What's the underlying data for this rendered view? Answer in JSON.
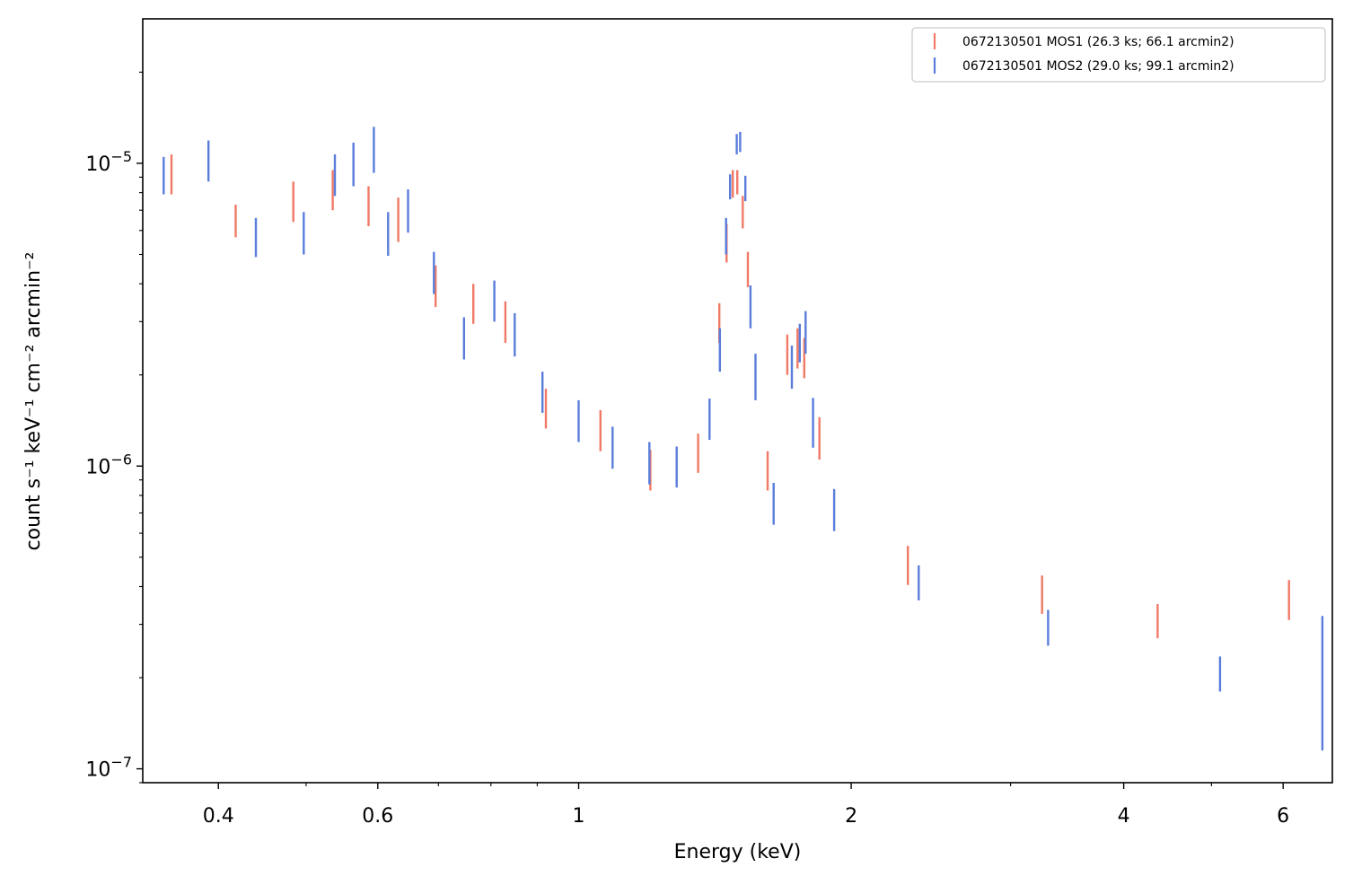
{
  "chart_data": {
    "type": "scatter",
    "xlabel": "Energy (keV)",
    "ylabel": "count s⁻¹ keV⁻¹ cm⁻² arcmin⁻²",
    "xscale": "log",
    "yscale": "log",
    "xlim": [
      0.33,
      6.8
    ],
    "ylim": [
      9e-08,
      3e-05
    ],
    "x_ticks": [
      {
        "value": 0.4,
        "label": "0.4"
      },
      {
        "value": 0.6,
        "label": "0.6"
      },
      {
        "value": 1,
        "label": "1"
      },
      {
        "value": 2,
        "label": "2"
      },
      {
        "value": 4,
        "label": "4"
      },
      {
        "value": 6,
        "label": "6"
      }
    ],
    "y_ticks": [
      {
        "value": 1e-07,
        "label_base": "10",
        "label_exp": "−7"
      },
      {
        "value": 1e-06,
        "label_base": "10",
        "label_exp": "−6"
      },
      {
        "value": 1e-05,
        "label_base": "10",
        "label_exp": "−5"
      }
    ],
    "grid": false,
    "legend_position": "top-right",
    "series": [
      {
        "name": "0672130501 MOS1 (26.3 ks; 66.1 arcmin2)",
        "color": "#f07a66",
        "points": [
          {
            "x": 0.355,
            "ylo": 7.9e-06,
            "yhi": 1.07e-05
          },
          {
            "x": 0.418,
            "ylo": 5.7e-06,
            "yhi": 7.3e-06
          },
          {
            "x": 0.484,
            "ylo": 6.4e-06,
            "yhi": 8.7e-06
          },
          {
            "x": 0.535,
            "ylo": 7e-06,
            "yhi": 9.5e-06
          },
          {
            "x": 0.586,
            "ylo": 6.2e-06,
            "yhi": 8.4e-06
          },
          {
            "x": 0.632,
            "ylo": 5.5e-06,
            "yhi": 7.7e-06
          },
          {
            "x": 0.695,
            "ylo": 3.35e-06,
            "yhi": 4.6e-06
          },
          {
            "x": 0.765,
            "ylo": 2.95e-06,
            "yhi": 4e-06
          },
          {
            "x": 0.83,
            "ylo": 2.55e-06,
            "yhi": 3.5e-06
          },
          {
            "x": 0.92,
            "ylo": 1.33e-06,
            "yhi": 1.8e-06
          },
          {
            "x": 1.057,
            "ylo": 1.12e-06,
            "yhi": 1.53e-06
          },
          {
            "x": 1.2,
            "ylo": 8.3e-07,
            "yhi": 1.13e-06
          },
          {
            "x": 1.355,
            "ylo": 9.5e-07,
            "yhi": 1.28e-06
          },
          {
            "x": 1.43,
            "ylo": 2.55e-06,
            "yhi": 3.45e-06
          },
          {
            "x": 1.457,
            "ylo": 4.7e-06,
            "yhi": 6.3e-06
          },
          {
            "x": 1.48,
            "ylo": 7.7e-06,
            "yhi": 9.5e-06
          },
          {
            "x": 1.497,
            "ylo": 7.9e-06,
            "yhi": 9.5e-06
          },
          {
            "x": 1.518,
            "ylo": 6.1e-06,
            "yhi": 7.8e-06
          },
          {
            "x": 1.538,
            "ylo": 3.9e-06,
            "yhi": 5.1e-06
          },
          {
            "x": 1.617,
            "ylo": 8.3e-07,
            "yhi": 1.12e-06
          },
          {
            "x": 1.7,
            "ylo": 2e-06,
            "yhi": 2.72e-06
          },
          {
            "x": 1.745,
            "ylo": 2.1e-06,
            "yhi": 2.85e-06
          },
          {
            "x": 1.775,
            "ylo": 1.95e-06,
            "yhi": 2.65e-06
          },
          {
            "x": 1.845,
            "ylo": 1.05e-06,
            "yhi": 1.45e-06
          },
          {
            "x": 2.31,
            "ylo": 4.05e-07,
            "yhi": 5.45e-07
          },
          {
            "x": 3.25,
            "ylo": 3.25e-07,
            "yhi": 4.35e-07
          },
          {
            "x": 4.36,
            "ylo": 2.7e-07,
            "yhi": 3.5e-07
          },
          {
            "x": 6.09,
            "ylo": 3.1e-07,
            "yhi": 4.2e-07
          }
        ]
      },
      {
        "name": "0672130501 MOS2 (29.0 ks; 99.1 arcmin2)",
        "color": "#5a7ddb",
        "points": [
          {
            "x": 0.348,
            "ylo": 7.9e-06,
            "yhi": 1.05e-05
          },
          {
            "x": 0.39,
            "ylo": 8.7e-06,
            "yhi": 1.19e-05
          },
          {
            "x": 0.44,
            "ylo": 4.9e-06,
            "yhi": 6.6e-06
          },
          {
            "x": 0.497,
            "ylo": 5e-06,
            "yhi": 6.9e-06
          },
          {
            "x": 0.538,
            "ylo": 7.8e-06,
            "yhi": 1.07e-05
          },
          {
            "x": 0.564,
            "ylo": 8.4e-06,
            "yhi": 1.17e-05
          },
          {
            "x": 0.594,
            "ylo": 9.3e-06,
            "yhi": 1.32e-05
          },
          {
            "x": 0.616,
            "ylo": 4.95e-06,
            "yhi": 6.9e-06
          },
          {
            "x": 0.648,
            "ylo": 5.9e-06,
            "yhi": 8.2e-06
          },
          {
            "x": 0.692,
            "ylo": 3.7e-06,
            "yhi": 5.1e-06
          },
          {
            "x": 0.747,
            "ylo": 2.25e-06,
            "yhi": 3.1e-06
          },
          {
            "x": 0.807,
            "ylo": 3e-06,
            "yhi": 4.1e-06
          },
          {
            "x": 0.85,
            "ylo": 2.3e-06,
            "yhi": 3.2e-06
          },
          {
            "x": 0.912,
            "ylo": 1.5e-06,
            "yhi": 2.05e-06
          },
          {
            "x": 1.0,
            "ylo": 1.2e-06,
            "yhi": 1.65e-06
          },
          {
            "x": 1.09,
            "ylo": 9.8e-07,
            "yhi": 1.35e-06
          },
          {
            "x": 1.197,
            "ylo": 8.7e-07,
            "yhi": 1.2e-06
          },
          {
            "x": 1.283,
            "ylo": 8.5e-07,
            "yhi": 1.16e-06
          },
          {
            "x": 1.395,
            "ylo": 1.22e-06,
            "yhi": 1.67e-06
          },
          {
            "x": 1.432,
            "ylo": 2.05e-06,
            "yhi": 2.85e-06
          },
          {
            "x": 1.455,
            "ylo": 5e-06,
            "yhi": 6.6e-06
          },
          {
            "x": 1.47,
            "ylo": 7.6e-06,
            "yhi": 9.2e-06
          },
          {
            "x": 1.495,
            "ylo": 1.07e-05,
            "yhi": 1.25e-05
          },
          {
            "x": 1.508,
            "ylo": 1.09e-05,
            "yhi": 1.27e-05
          },
          {
            "x": 1.528,
            "ylo": 7.5e-06,
            "yhi": 9.1e-06
          },
          {
            "x": 1.548,
            "ylo": 2.85e-06,
            "yhi": 3.95e-06
          },
          {
            "x": 1.568,
            "ylo": 1.65e-06,
            "yhi": 2.35e-06
          },
          {
            "x": 1.642,
            "ylo": 6.4e-07,
            "yhi": 8.8e-07
          },
          {
            "x": 1.72,
            "ylo": 1.8e-06,
            "yhi": 2.5e-06
          },
          {
            "x": 1.755,
            "ylo": 2.2e-06,
            "yhi": 2.95e-06
          },
          {
            "x": 1.781,
            "ylo": 2.35e-06,
            "yhi": 3.25e-06
          },
          {
            "x": 1.815,
            "ylo": 1.15e-06,
            "yhi": 1.68e-06
          },
          {
            "x": 1.915,
            "ylo": 6.1e-07,
            "yhi": 8.4e-07
          },
          {
            "x": 2.375,
            "ylo": 3.6e-07,
            "yhi": 4.7e-07
          },
          {
            "x": 3.3,
            "ylo": 2.55e-07,
            "yhi": 3.35e-07
          },
          {
            "x": 5.11,
            "ylo": 1.8e-07,
            "yhi": 2.35e-07
          },
          {
            "x": 6.63,
            "ylo": 1.15e-07,
            "yhi": 3.2e-07
          }
        ]
      }
    ]
  }
}
